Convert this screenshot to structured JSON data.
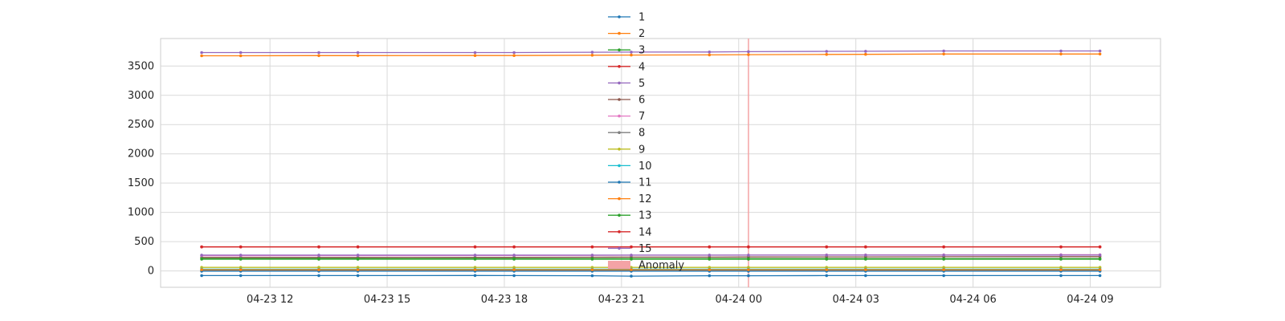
{
  "chart_data": {
    "type": "line",
    "title": "",
    "xlabel": "",
    "ylabel": "",
    "grid": true,
    "legend_position": "upper-center",
    "x_ticks": [
      "04-23 12",
      "04-23 15",
      "04-23 18",
      "04-23 21",
      "04-24 00",
      "04-24 03",
      "04-24 06",
      "04-24 09"
    ],
    "y_ticks": [
      "0",
      "500",
      "1000",
      "1500",
      "2000",
      "2500",
      "3000",
      "3500"
    ],
    "ylim": [
      -280,
      3970
    ],
    "xlim": [
      "2024-04-23 09:12",
      "2024-04-24 10:48"
    ],
    "x": [
      "2024-04-23 10:15",
      "2024-04-23 11:15",
      "2024-04-23 13:15",
      "2024-04-23 14:15",
      "2024-04-23 17:15",
      "2024-04-23 18:15",
      "2024-04-23 20:15",
      "2024-04-23 21:15",
      "2024-04-23 23:15",
      "2024-04-24 00:15",
      "2024-04-24 02:15",
      "2024-04-24 03:15",
      "2024-04-24 05:15",
      "2024-04-24 08:15",
      "2024-04-24 09:15"
    ],
    "series": [
      {
        "name": "1",
        "color": "#1f77b4",
        "values": [
          -80,
          -80,
          -80,
          -80,
          -78,
          -80,
          -82,
          -90,
          -82,
          -82,
          -80,
          -80,
          -80,
          -80,
          -80
        ]
      },
      {
        "name": "2",
        "color": "#ff7f0e",
        "values": [
          3675,
          3675,
          3678,
          3678,
          3680,
          3680,
          3685,
          3688,
          3690,
          3695,
          3698,
          3700,
          3705,
          3705,
          3705
        ]
      },
      {
        "name": "3",
        "color": "#2ca02c",
        "values": [
          200,
          200,
          200,
          200,
          200,
          200,
          200,
          200,
          200,
          200,
          200,
          200,
          200,
          200,
          200
        ]
      },
      {
        "name": "4",
        "color": "#d62728",
        "values": [
          410,
          410,
          410,
          410,
          410,
          410,
          410,
          410,
          410,
          410,
          410,
          410,
          410,
          410,
          410
        ]
      },
      {
        "name": "5",
        "color": "#9467bd",
        "values": [
          3730,
          3730,
          3730,
          3730,
          3730,
          3730,
          3735,
          3738,
          3740,
          3745,
          3750,
          3752,
          3758,
          3758,
          3758
        ]
      },
      {
        "name": "6",
        "color": "#8c564b",
        "values": [
          230,
          230,
          230,
          230,
          232,
          232,
          234,
          236,
          236,
          238,
          240,
          240,
          242,
          244,
          244
        ]
      },
      {
        "name": "7",
        "color": "#e377c2",
        "values": [
          260,
          260,
          262,
          262,
          264,
          264,
          266,
          268,
          268,
          270,
          272,
          272,
          274,
          276,
          276
        ]
      },
      {
        "name": "8",
        "color": "#7f7f7f",
        "values": [
          5,
          5,
          5,
          5,
          5,
          5,
          5,
          5,
          5,
          5,
          5,
          5,
          5,
          5,
          5
        ]
      },
      {
        "name": "9",
        "color": "#bcbd22",
        "values": [
          60,
          60,
          60,
          60,
          60,
          60,
          60,
          60,
          60,
          60,
          60,
          60,
          60,
          60,
          60
        ]
      },
      {
        "name": "10",
        "color": "#17becf",
        "values": [
          30,
          30,
          30,
          30,
          30,
          30,
          30,
          30,
          30,
          30,
          30,
          30,
          30,
          30,
          30
        ]
      },
      {
        "name": "11",
        "color": "#1f77b4",
        "values": [
          -5,
          -5,
          -5,
          -5,
          -5,
          -5,
          -5,
          -5,
          -5,
          -5,
          -5,
          -5,
          -5,
          -5,
          -5
        ]
      },
      {
        "name": "12",
        "color": "#ff7f0e",
        "values": [
          20,
          20,
          20,
          20,
          20,
          20,
          20,
          20,
          20,
          20,
          20,
          20,
          20,
          20,
          20
        ]
      },
      {
        "name": "13",
        "color": "#2ca02c",
        "values": [
          210,
          210,
          210,
          210,
          210,
          210,
          210,
          210,
          210,
          210,
          210,
          210,
          210,
          210,
          210
        ]
      },
      {
        "name": "14",
        "color": "#d62728",
        "values": [
          412,
          412,
          412,
          412,
          412,
          412,
          412,
          412,
          412,
          412,
          412,
          412,
          412,
          412,
          412
        ]
      },
      {
        "name": "15",
        "color": "#9467bd",
        "values": [
          270,
          270,
          270,
          270,
          270,
          270,
          270,
          270,
          270,
          270,
          270,
          270,
          270,
          270,
          270
        ]
      }
    ],
    "anomaly": {
      "label": "Anomaly",
      "x": "2024-04-24 00:15",
      "color": "#f4a3a5"
    }
  }
}
